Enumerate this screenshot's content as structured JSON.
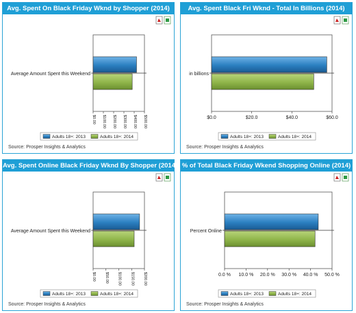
{
  "colors": {
    "header": "#1f9fd6",
    "border": "#2aa3d6",
    "series_2013": "#2b7fc0",
    "series_2014": "#8fb54a"
  },
  "icons": [
    "pdf-export-icon",
    "excel-export-icon"
  ],
  "source": "Source: Prosper Insights & Analytics",
  "chart_data": [
    {
      "type": "bar",
      "orientation": "horizontal",
      "title": "Avg. Spent On Black Friday Wknd by Shopper (2014)",
      "categories": [
        "Average Amount Spent this Weekend"
      ],
      "series": [
        {
          "name": "Adults 18+: 2013",
          "values": [
            423.0
          ]
        },
        {
          "name": "Adults 18+: 2014",
          "values": [
            380.95
          ]
        }
      ],
      "xlim": [
        0,
        500
      ],
      "ticks": [
        0,
        100,
        200,
        300,
        400,
        500
      ],
      "tick_labels": [
        "$0.00",
        "$100.00",
        "$200.00",
        "$300.00",
        "$400.00",
        "$500.00"
      ],
      "tick_rotated": true,
      "grid": false,
      "legend_position": "bottom"
    },
    {
      "type": "bar",
      "orientation": "horizontal",
      "title": "Avg. Spent Black Fri Wknd - Total In Billions (2014)",
      "categories": [
        "in billions"
      ],
      "series": [
        {
          "name": "Adults 18+: 2013",
          "values": [
            57.4
          ]
        },
        {
          "name": "Adults 18+: 2014",
          "values": [
            50.9
          ]
        }
      ],
      "xlim": [
        0,
        60
      ],
      "ticks": [
        0,
        20,
        40,
        60
      ],
      "tick_labels": [
        "$0.0",
        "$20.0",
        "$40.0",
        "$60.0"
      ],
      "tick_rotated": false,
      "grid": false,
      "legend_position": "bottom"
    },
    {
      "type": "bar",
      "orientation": "horizontal",
      "title": "Avg. Spent Online Black Friday Wknd By Shopper (2014)",
      "categories": [
        "Average Amount Spent this Weekend"
      ],
      "series": [
        {
          "name": "Adults 18+: 2013",
          "values": [
            181.0
          ]
        },
        {
          "name": "Adults 18+: 2014",
          "values": [
            160.0
          ]
        }
      ],
      "xlim": [
        0,
        200
      ],
      "ticks": [
        0,
        50,
        100,
        150,
        200
      ],
      "tick_labels": [
        "$0.00",
        "$50.00",
        "$100.00",
        "$150.00",
        "$200.00"
      ],
      "tick_rotated": true,
      "grid": false,
      "legend_position": "bottom"
    },
    {
      "type": "bar",
      "orientation": "horizontal",
      "title": "% of Total Black Friday Wkend Shopping Online (2014)",
      "categories": [
        "Percent Online"
      ],
      "series": [
        {
          "name": "Adults 18+: 2013",
          "values": [
            43.6
          ]
        },
        {
          "name": "Adults 18+: 2014",
          "values": [
            42.1
          ]
        }
      ],
      "xlim": [
        0,
        50
      ],
      "ticks": [
        0,
        10,
        20,
        30,
        40,
        50
      ],
      "tick_labels": [
        "0.0 %",
        "10.0 %",
        "20.0 %",
        "30.0 %",
        "40.0 %",
        "50.0 %"
      ],
      "tick_rotated": false,
      "grid": false,
      "legend_position": "bottom"
    }
  ]
}
